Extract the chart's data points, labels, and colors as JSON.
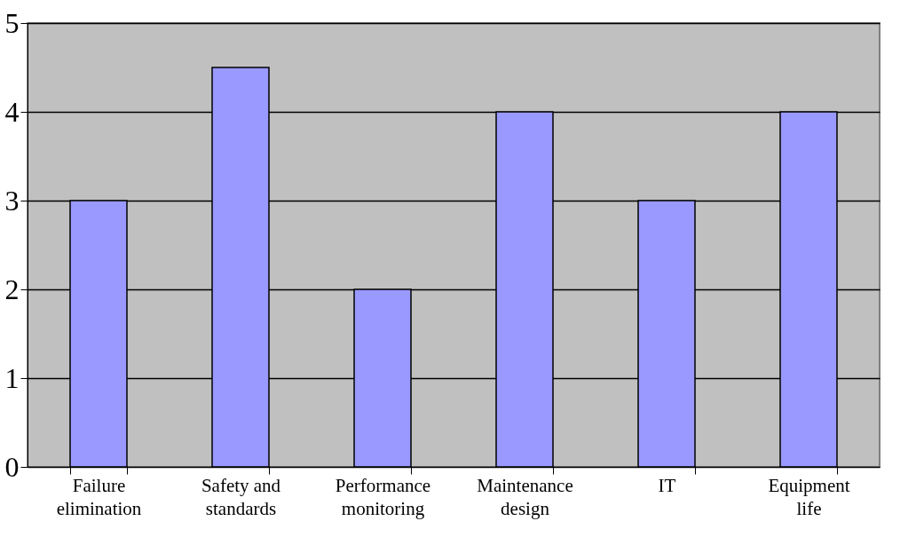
{
  "chart_data": {
    "type": "bar",
    "categories": [
      "Failure elimination",
      "Safety and standards",
      "Performance monitoring",
      "Maintenance design",
      "IT",
      "Equipment life"
    ],
    "values": [
      3,
      4.5,
      2,
      4,
      3,
      4
    ],
    "color": "#9999ff",
    "ylim": [
      0,
      5
    ],
    "yticks": [
      0,
      1,
      2,
      3,
      4,
      5
    ],
    "grid": "y"
  }
}
